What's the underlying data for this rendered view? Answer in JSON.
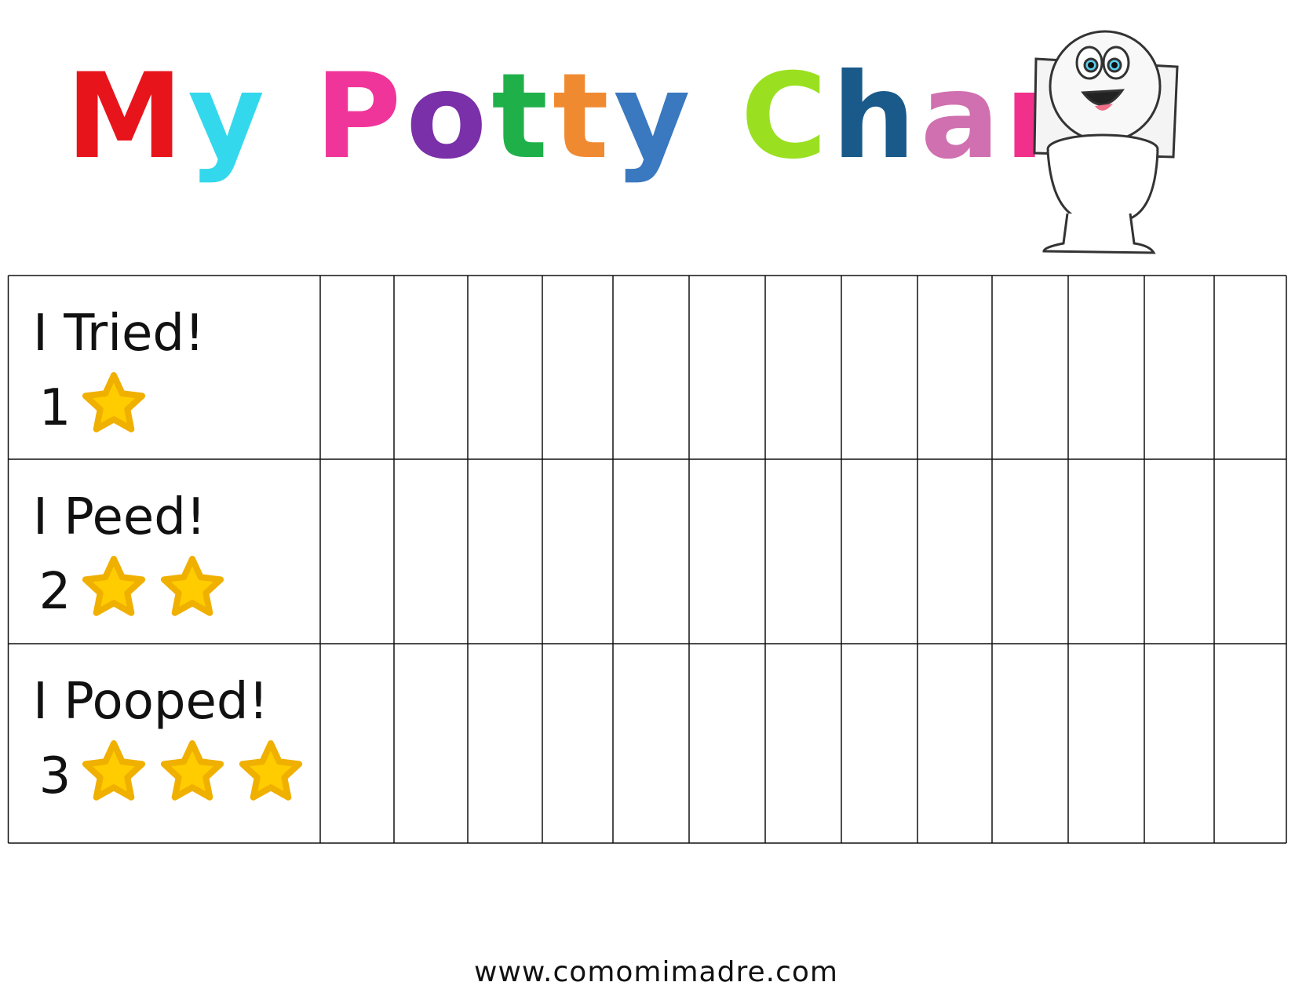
{
  "header": {
    "title": "My Potty Chart",
    "title_colors": [
      "#e8141c",
      "#34d8ec",
      "#f0359a",
      "#7a30a8",
      "#20b04a",
      "#f08a30",
      "#3a78c0",
      "#9ae020",
      "#1a5a8a",
      "#d070b0",
      "#f0308a",
      "#c080e8"
    ]
  },
  "table": {
    "rows": [
      {
        "label": "I Tried!",
        "points": 1
      },
      {
        "label": "I Peed!",
        "points": 2
      },
      {
        "label": "I Pooped!",
        "points": 3
      }
    ],
    "star_color": "#ffcc00"
  },
  "footer": {
    "website": "www.comomimadre.com"
  }
}
